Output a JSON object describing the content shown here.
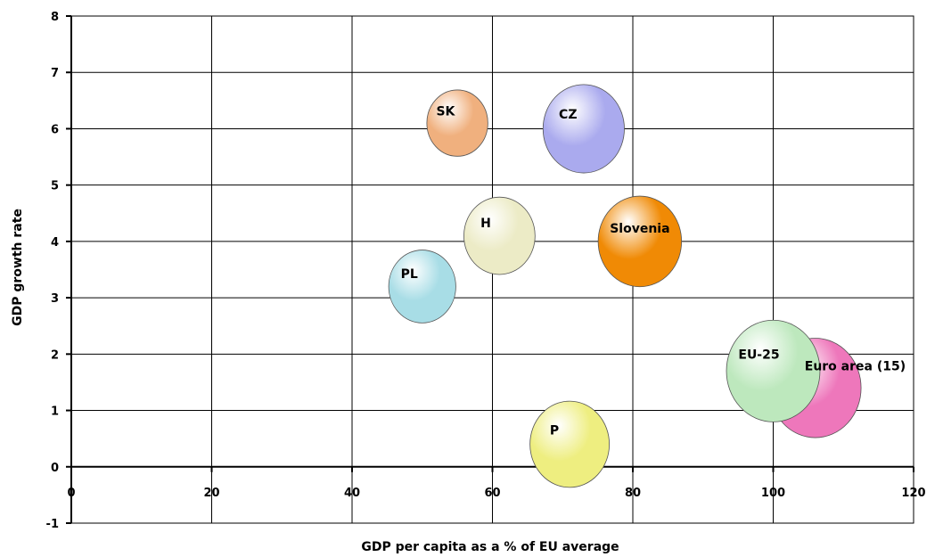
{
  "chart_data": {
    "type": "scatter",
    "variant": "bubble",
    "title": "",
    "xlabel": "GDP per capita as a % of EU average",
    "ylabel": "GDP growth rate",
    "xlim": [
      0,
      120
    ],
    "ylim": [
      -1,
      8
    ],
    "xticks": [
      0,
      20,
      40,
      60,
      80,
      100,
      120
    ],
    "yticks": [
      -1,
      0,
      1,
      2,
      3,
      4,
      5,
      6,
      7,
      8
    ],
    "grid": true,
    "series": [
      {
        "name": "SK",
        "x": 55,
        "y": 6.1,
        "size": 6.0,
        "color": "#f0b07e"
      },
      {
        "name": "CZ",
        "x": 73,
        "y": 6.0,
        "size": 8.0,
        "color": "#aaaaee"
      },
      {
        "name": "H",
        "x": 61,
        "y": 4.1,
        "size": 7.0,
        "color": "#ecebc6"
      },
      {
        "name": "Slovenia",
        "x": 81,
        "y": 4.0,
        "size": 8.2,
        "color": "#f08a05"
      },
      {
        "name": "PL",
        "x": 50,
        "y": 3.2,
        "size": 6.6,
        "color": "#a8dde6"
      },
      {
        "name": "P",
        "x": 71,
        "y": 0.4,
        "size": 7.8,
        "color": "#eeee80"
      },
      {
        "name": "Euro area (15)",
        "x": 106,
        "y": 1.4,
        "size": 9.0,
        "color": "#ee77bb"
      },
      {
        "name": "EU-25",
        "x": 100,
        "y": 1.7,
        "size": 9.2,
        "color": "#bde8bd"
      }
    ]
  }
}
